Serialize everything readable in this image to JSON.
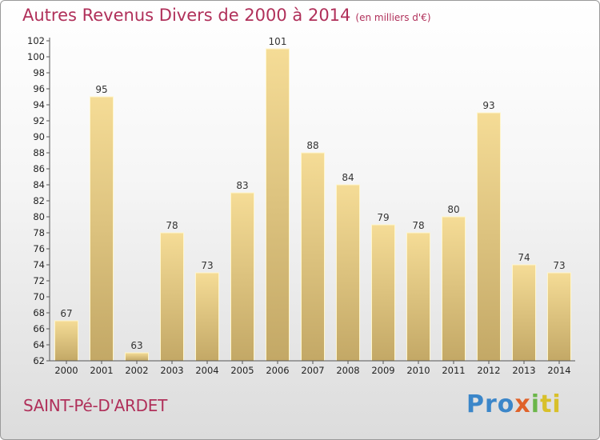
{
  "header": {
    "title": "Autres Revenus Divers de 2000 à 2014",
    "unit": "(en milliers d'€)"
  },
  "footer": {
    "commune": "SAINT-Pé-D'ARDET",
    "logo": [
      "Pro",
      "x",
      "i",
      "ti"
    ]
  },
  "colors": {
    "title": "#b0305a",
    "bar_top": "#f5dc96",
    "bar_bottom": "#c3a866",
    "bar_edge": "#fff6cc"
  },
  "chart_data": {
    "type": "bar",
    "title": "Autres Revenus Divers de 2000 à 2014",
    "categories": [
      "2000",
      "2001",
      "2002",
      "2003",
      "2004",
      "2005",
      "2006",
      "2007",
      "2008",
      "2009",
      "2010",
      "2011",
      "2012",
      "2013",
      "2014"
    ],
    "values": [
      67,
      95,
      63,
      78,
      73,
      83,
      101,
      88,
      84,
      79,
      78,
      80,
      93,
      74,
      73
    ],
    "ylim": [
      62,
      102
    ],
    "yticks": [
      62,
      64,
      66,
      68,
      70,
      72,
      74,
      76,
      78,
      80,
      82,
      84,
      86,
      88,
      90,
      92,
      94,
      96,
      98,
      100,
      102
    ],
    "grid": false,
    "xlabel": "",
    "ylabel": ""
  }
}
